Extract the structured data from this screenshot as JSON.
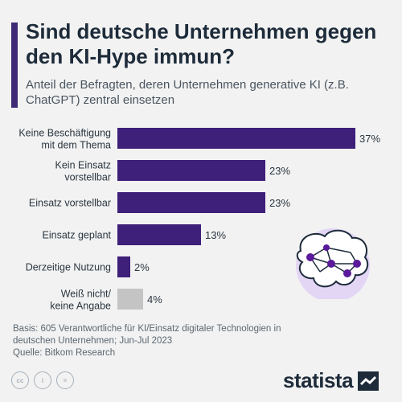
{
  "header": {
    "title": "Sind deutsche Unternehmen gegen den KI-Hype immun?",
    "subtitle": "Anteil der Befragten, deren Unternehmen generative KI (z.B. ChatGPT) zentral einsetzen"
  },
  "chart_data": {
    "type": "bar",
    "orientation": "horizontal",
    "categories": [
      [
        "Keine Beschäftigung",
        "mit dem Thema"
      ],
      [
        "Kein Einsatz",
        "vorstellbar"
      ],
      [
        "Einsatz vorstellbar"
      ],
      [
        "Einsatz geplant"
      ],
      [
        "Derzeitige Nutzung"
      ],
      [
        "Weiß nicht/",
        "keine Angabe"
      ]
    ],
    "values": [
      37,
      23,
      23,
      13,
      2,
      4
    ],
    "value_labels": [
      "37%",
      "23%",
      "23%",
      "13%",
      "2%",
      "4%"
    ],
    "colors": [
      "#3e1f7a",
      "#3e1f7a",
      "#3e1f7a",
      "#3e1f7a",
      "#3e1f7a",
      "#c4c4c4"
    ],
    "xlim": [
      0,
      37
    ]
  },
  "footer": {
    "basis": "Basis: 605 Verantwortliche für KI/Einsatz digitaler Technologien in deutschen Unternehmen; Jun-Jul 2023",
    "source": "Quelle: Bitkom Research"
  },
  "license_icons": [
    "cc",
    "i",
    "="
  ],
  "brand": {
    "name": "statista"
  },
  "colors": {
    "accent": "#3e2a75",
    "bar": "#3e1f7a",
    "bar_other": "#c4c4c4",
    "background": "#f2f2f2"
  }
}
